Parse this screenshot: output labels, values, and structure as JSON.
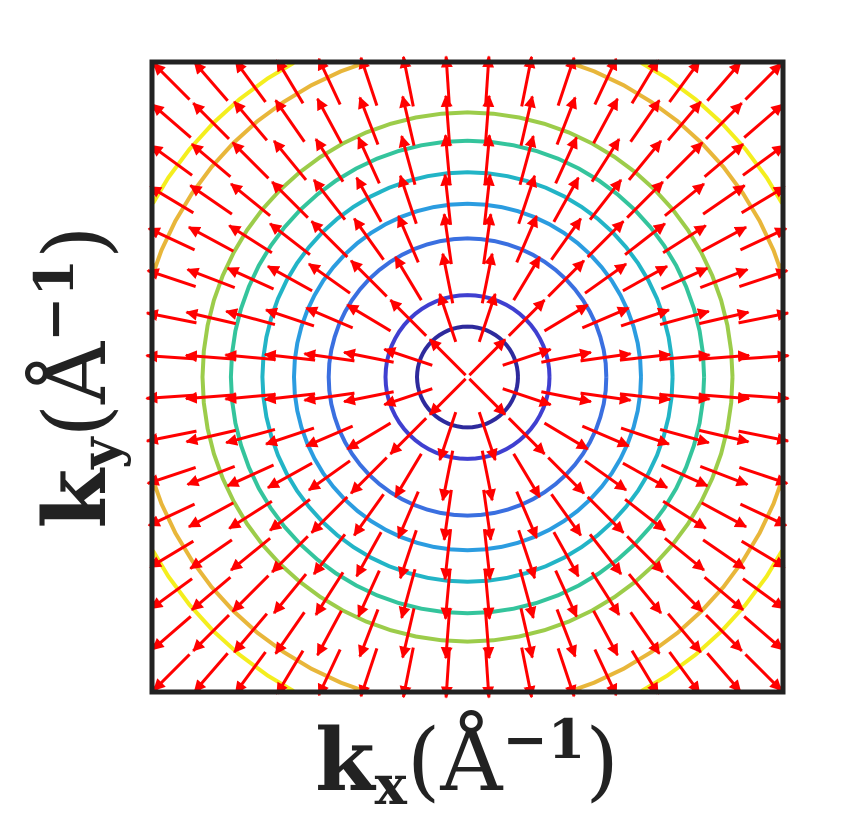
{
  "chart_data": {
    "type": "quiver",
    "xlabel": {
      "symbol": "k",
      "subscript": "x",
      "unit_open": "(Å",
      "exponent": "−1",
      "unit_close": ")"
    },
    "ylabel": {
      "symbol": "k",
      "subscript": "y",
      "unit_open": "(Å",
      "exponent": "−1",
      "unit_close": ")"
    },
    "xlim": [
      -1,
      1
    ],
    "ylim": [
      -1,
      1
    ],
    "x": [
      -0.9375,
      -0.8125,
      -0.6875,
      -0.5625,
      -0.4375,
      -0.3125,
      -0.1875,
      -0.0625,
      0.0625,
      0.1875,
      0.3125,
      0.4375,
      0.5625,
      0.6875,
      0.8125,
      0.9375
    ],
    "y": [
      -0.9375,
      -0.8125,
      -0.6875,
      -0.5625,
      -0.4375,
      -0.3125,
      -0.1875,
      -0.0625,
      0.0625,
      0.1875,
      0.3125,
      0.4375,
      0.5625,
      0.6875,
      0.8125,
      0.9375
    ],
    "field": "radial",
    "arrow_color": "#ff0000",
    "contours": {
      "levels": [
        0.16,
        0.26,
        0.44,
        0.55,
        0.65,
        0.75,
        0.84,
        1.05,
        1.14
      ],
      "colors": [
        "#2e2a9c",
        "#3f3fd0",
        "#3a6fe0",
        "#2b9ce0",
        "#22b4c6",
        "#34c49c",
        "#9ccc4a",
        "#e8b63a",
        "#f4ee1e"
      ]
    }
  }
}
